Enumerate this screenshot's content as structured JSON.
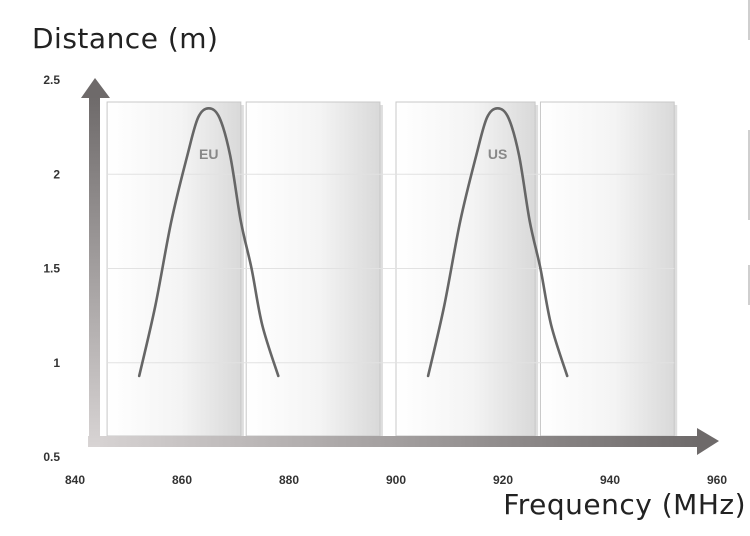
{
  "chart_data": {
    "type": "line",
    "ylabel": "Distance (m)",
    "xlabel": "Frequency (MHz)",
    "xlim": [
      840,
      960
    ],
    "ylim": [
      0.5,
      2.5
    ],
    "x_ticks": [
      "840",
      "860",
      "880",
      "900",
      "920",
      "940",
      "960"
    ],
    "y_ticks": [
      "2.5",
      "2",
      "1.5",
      "1",
      "0.5"
    ],
    "panels": [
      [
        846,
        871
      ],
      [
        872,
        897
      ],
      [
        900,
        926
      ],
      [
        927,
        952
      ]
    ],
    "series": [
      {
        "name": "EU",
        "points": [
          [
            852,
            0.93
          ],
          [
            855,
            1.3
          ],
          [
            858,
            1.75
          ],
          [
            861,
            2.1
          ],
          [
            863,
            2.3
          ],
          [
            865,
            2.35
          ],
          [
            867,
            2.3
          ],
          [
            869,
            2.1
          ],
          [
            871,
            1.75
          ],
          [
            873,
            1.5
          ],
          [
            875,
            1.2
          ],
          [
            878,
            0.93
          ]
        ]
      },
      {
        "name": "US",
        "points": [
          [
            906,
            0.93
          ],
          [
            909,
            1.3
          ],
          [
            912,
            1.75
          ],
          [
            915,
            2.1
          ],
          [
            917,
            2.3
          ],
          [
            919,
            2.35
          ],
          [
            921,
            2.3
          ],
          [
            923,
            2.1
          ],
          [
            925,
            1.75
          ],
          [
            927,
            1.5
          ],
          [
            929,
            1.2
          ],
          [
            932,
            0.93
          ]
        ]
      }
    ],
    "label_positions": [
      [
        865,
        2.08
      ],
      [
        919,
        2.08
      ]
    ],
    "colors": {
      "curve": "#666666",
      "axis": "#6e6a6a",
      "grid": "#e2e2e2"
    }
  }
}
